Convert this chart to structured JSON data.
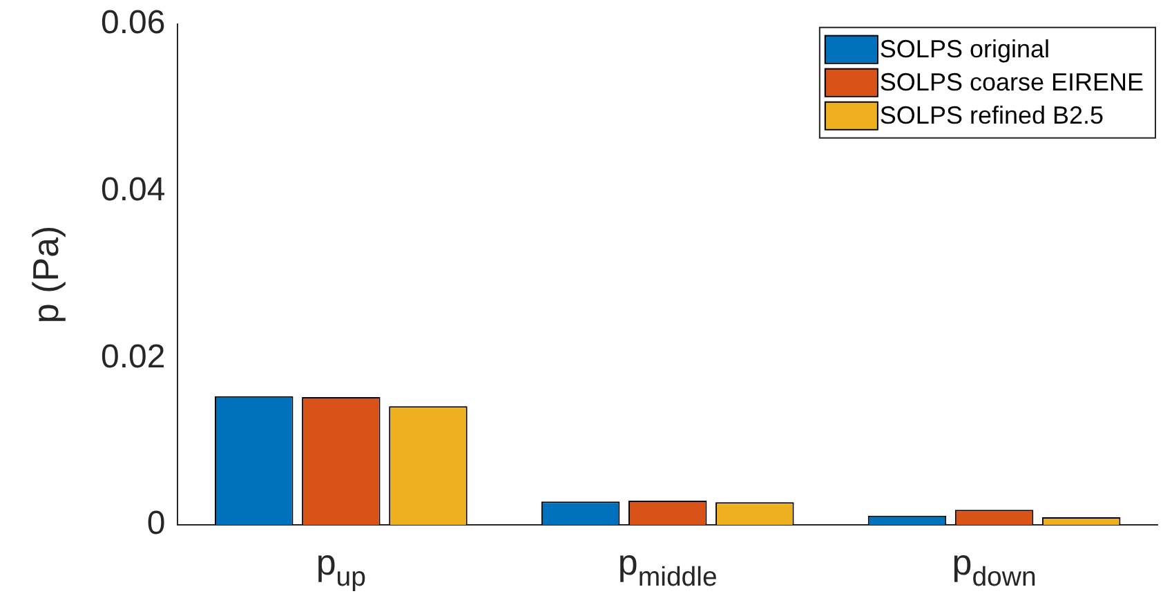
{
  "chart_data": {
    "type": "bar",
    "ylabel": "p (Pa)",
    "categories": [
      "p$_{up}$",
      "p$_{middle}$",
      "p$_{down}$"
    ],
    "series": [
      {
        "name": "SOLPS original",
        "color": "#0072bd",
        "values": [
          0.0154,
          0.0028,
          0.0011
        ]
      },
      {
        "name": "SOLPS coarse EIRENE",
        "color": "#d95319",
        "values": [
          0.0153,
          0.0029,
          0.0018
        ]
      },
      {
        "name": "SOLPS refined B2.5",
        "color": "#edb120",
        "values": [
          0.0142,
          0.0027,
          0.0009
        ]
      }
    ],
    "ylim": [
      0,
      0.06
    ],
    "yticks": [
      0,
      0.02,
      0.04,
      0.06
    ],
    "legend": "top right",
    "grid": false
  }
}
